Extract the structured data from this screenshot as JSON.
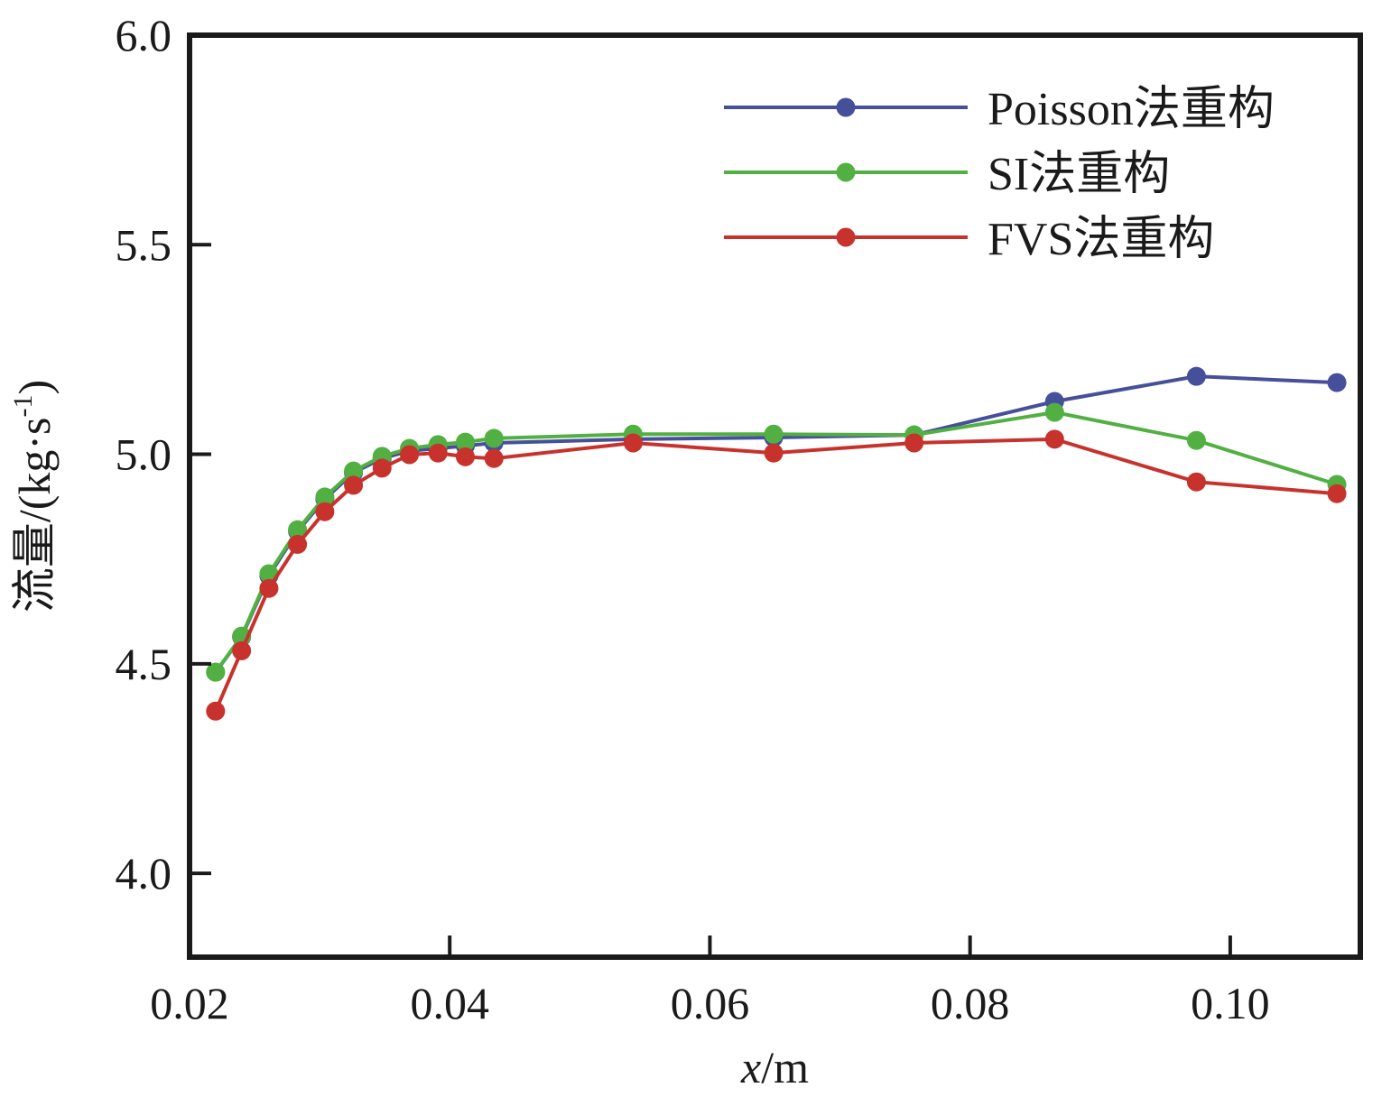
{
  "chart_data": {
    "type": "line",
    "title": "",
    "xlabel_italic": "x",
    "xlabel_rest": "/m",
    "ylabel": "流量/(kg·s⁻¹)",
    "ylabel_main": "流量/(kg·s",
    "ylabel_sup": "-1",
    "ylabel_close": ")",
    "xlim": [
      0.02,
      0.11
    ],
    "ylim": [
      3.8,
      6.0
    ],
    "xticks": [
      0.02,
      0.04,
      0.06,
      0.08,
      0.1
    ],
    "xtick_labels": [
      "0.02",
      "0.04",
      "0.06",
      "0.08",
      "0.10"
    ],
    "yticks": [
      4.0,
      4.5,
      5.0,
      5.5,
      6.0
    ],
    "ytick_labels": [
      "4.0",
      "4.5",
      "5.0",
      "5.5",
      "6.0"
    ],
    "grid": false,
    "legend_position": "top-right",
    "x": [
      0.022,
      0.024,
      0.0261,
      0.0283,
      0.0304,
      0.0326,
      0.0348,
      0.0369,
      0.0391,
      0.0412,
      0.0434,
      0.0541,
      0.0649,
      0.0757,
      0.0865,
      0.0974,
      0.1082
    ],
    "series": [
      {
        "name": "Poisson法重构",
        "color": "#464f9a",
        "values": [
          4.48,
          4.564,
          4.71,
          4.816,
          4.893,
          4.956,
          4.99,
          5.008,
          5.014,
          5.02,
          5.027,
          5.036,
          5.04,
          5.046,
          5.126,
          5.186,
          5.171
        ]
      },
      {
        "name": "SI法重构",
        "color": "#52b043",
        "values": [
          4.48,
          4.566,
          4.715,
          4.82,
          4.898,
          4.96,
          4.995,
          5.014,
          5.023,
          5.029,
          5.038,
          5.048,
          5.048,
          5.046,
          5.1,
          5.033,
          4.928
        ]
      },
      {
        "name": "FVS法重构",
        "color": "#c8322d",
        "values": [
          4.387,
          4.531,
          4.68,
          4.785,
          4.863,
          4.926,
          4.967,
          4.999,
          5.003,
          4.994,
          4.99,
          5.027,
          5.003,
          5.027,
          5.036,
          4.934,
          4.906
        ]
      }
    ]
  }
}
